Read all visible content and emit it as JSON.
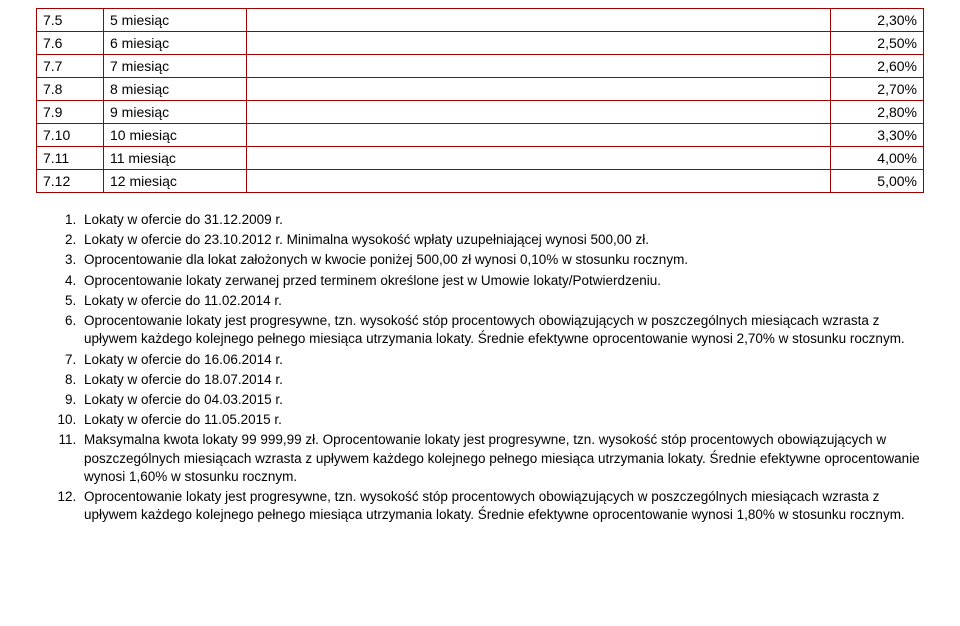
{
  "table": {
    "border_color": "#a00000",
    "rows": [
      {
        "num": "7.5",
        "label": "5 miesiąc",
        "rate": "2,30%"
      },
      {
        "num": "7.6",
        "label": "6 miesiąc",
        "rate": "2,50%"
      },
      {
        "num": "7.7",
        "label": "7 miesiąc",
        "rate": "2,60%"
      },
      {
        "num": "7.8",
        "label": "8 miesiąc",
        "rate": "2,70%"
      },
      {
        "num": "7.9",
        "label": "9 miesiąc",
        "rate": "2,80%"
      },
      {
        "num": "7.10",
        "label": "10 miesiąc",
        "rate": "3,30%"
      },
      {
        "num": "7.11",
        "label": "11 miesiąc",
        "rate": "4,00%"
      },
      {
        "num": "7.12",
        "label": "12 miesiąc",
        "rate": "5,00%"
      }
    ]
  },
  "notes": [
    "Lokaty w ofercie do 31.12.2009 r.",
    "Lokaty w ofercie do 23.10.2012 r. Minimalna wysokość wpłaty uzupełniającej wynosi 500,00 zł.",
    "Oprocentowanie dla lokat założonych w kwocie poniżej 500,00 zł wynosi 0,10% w stosunku rocznym.",
    "Oprocentowanie lokaty zerwanej przed terminem określone jest w Umowie lokaty/Potwierdzeniu.",
    "Lokaty w ofercie do 11.02.2014 r.",
    "Oprocentowanie lokaty jest progresywne, tzn. wysokość stóp procentowych obowiązujących w poszczególnych miesiącach wzrasta z upływem każdego kolejnego pełnego miesiąca utrzymania lokaty. Średnie efektywne oprocentowanie wynosi 2,70% w stosunku rocznym.",
    "Lokaty w ofercie do 16.06.2014 r.",
    "Lokaty w ofercie do 18.07.2014 r.",
    "Lokaty w ofercie do 04.03.2015 r.",
    "Lokaty w ofercie do 11.05.2015 r.",
    "Maksymalna kwota lokaty 99 999,99 zł.\nOprocentowanie lokaty jest progresywne, tzn. wysokość stóp procentowych obowiązujących w poszczególnych miesiącach wzrasta z upływem każdego kolejnego pełnego miesiąca utrzymania lokaty. Średnie efektywne oprocentowanie wynosi 1,60% w stosunku rocznym.",
    "Oprocentowanie lokaty jest progresywne, tzn. wysokość stóp procentowych obowiązujących w poszczególnych miesiącach wzrasta z upływem każdego kolejnego pełnego miesiąca utrzymania lokaty. Średnie efektywne oprocentowanie wynosi 1,80% w stosunku rocznym."
  ]
}
